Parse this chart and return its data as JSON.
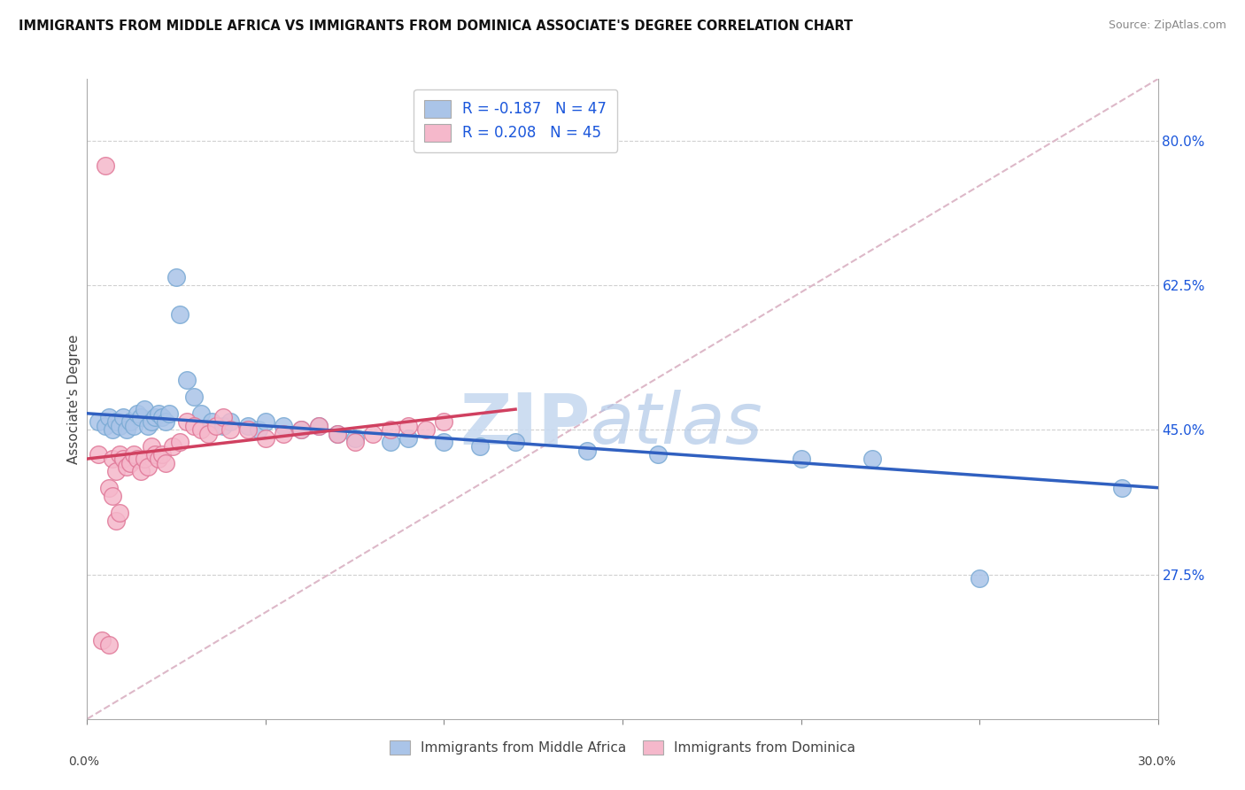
{
  "title": "IMMIGRANTS FROM MIDDLE AFRICA VS IMMIGRANTS FROM DOMINICA ASSOCIATE'S DEGREE CORRELATION CHART",
  "source": "Source: ZipAtlas.com",
  "ylabel": "Associate's Degree",
  "right_yticks": [
    "80.0%",
    "62.5%",
    "45.0%",
    "27.5%"
  ],
  "right_ytick_vals": [
    0.8,
    0.625,
    0.45,
    0.275
  ],
  "xmin": 0.0,
  "xmax": 0.3,
  "ymin": 0.1,
  "ymax": 0.875,
  "series1_label": "Immigrants from Middle Africa",
  "series2_label": "Immigrants from Dominica",
  "series1_color": "#aac4e8",
  "series1_edge": "#7aaad4",
  "series2_color": "#f5b8cb",
  "series2_edge": "#e07898",
  "series1_R": -0.187,
  "series1_N": 47,
  "series2_R": 0.208,
  "series2_N": 45,
  "legend_R_color": "#1a56db",
  "series1_scatter_x": [
    0.003,
    0.005,
    0.006,
    0.007,
    0.008,
    0.009,
    0.01,
    0.011,
    0.012,
    0.013,
    0.014,
    0.015,
    0.016,
    0.017,
    0.018,
    0.019,
    0.02,
    0.021,
    0.022,
    0.023,
    0.025,
    0.026,
    0.028,
    0.03,
    0.032,
    0.035,
    0.038,
    0.04,
    0.045,
    0.048,
    0.05,
    0.055,
    0.06,
    0.065,
    0.07,
    0.075,
    0.085,
    0.09,
    0.1,
    0.11,
    0.12,
    0.14,
    0.16,
    0.2,
    0.22,
    0.25,
    0.29
  ],
  "series1_scatter_y": [
    0.46,
    0.455,
    0.465,
    0.45,
    0.46,
    0.455,
    0.465,
    0.45,
    0.46,
    0.455,
    0.47,
    0.465,
    0.475,
    0.455,
    0.46,
    0.465,
    0.47,
    0.465,
    0.46,
    0.47,
    0.635,
    0.59,
    0.51,
    0.49,
    0.47,
    0.46,
    0.455,
    0.46,
    0.455,
    0.45,
    0.46,
    0.455,
    0.45,
    0.455,
    0.445,
    0.44,
    0.435,
    0.44,
    0.435,
    0.43,
    0.435,
    0.425,
    0.42,
    0.415,
    0.415,
    0.27,
    0.38
  ],
  "series2_scatter_x": [
    0.003,
    0.004,
    0.005,
    0.006,
    0.007,
    0.008,
    0.009,
    0.01,
    0.011,
    0.012,
    0.013,
    0.014,
    0.015,
    0.016,
    0.017,
    0.018,
    0.019,
    0.02,
    0.021,
    0.022,
    0.024,
    0.026,
    0.028,
    0.03,
    0.032,
    0.034,
    0.036,
    0.038,
    0.04,
    0.045,
    0.05,
    0.055,
    0.06,
    0.065,
    0.07,
    0.075,
    0.08,
    0.085,
    0.09,
    0.095,
    0.1,
    0.006,
    0.007,
    0.008,
    0.009
  ],
  "series2_scatter_y": [
    0.42,
    0.195,
    0.77,
    0.19,
    0.415,
    0.4,
    0.42,
    0.415,
    0.405,
    0.41,
    0.42,
    0.415,
    0.4,
    0.415,
    0.405,
    0.43,
    0.42,
    0.415,
    0.42,
    0.41,
    0.43,
    0.435,
    0.46,
    0.455,
    0.45,
    0.445,
    0.455,
    0.465,
    0.45,
    0.45,
    0.44,
    0.445,
    0.45,
    0.455,
    0.445,
    0.435,
    0.445,
    0.45,
    0.455,
    0.45,
    0.46,
    0.38,
    0.37,
    0.34,
    0.35
  ],
  "watermark_zip": "ZIP",
  "watermark_atlas": "atlas",
  "trend1_x": [
    0.0,
    0.3
  ],
  "trend1_y": [
    0.47,
    0.38
  ],
  "trend2_x": [
    0.0,
    0.12
  ],
  "trend2_y": [
    0.415,
    0.475
  ],
  "ref_line_x": [
    0.0,
    0.3
  ],
  "ref_line_y": [
    0.1,
    0.875
  ],
  "ref_line_color": "#ddb8c8",
  "grid_line_color": "#d0d0d0",
  "x_ticks_inner": [
    0.05,
    0.1,
    0.15,
    0.2,
    0.25
  ]
}
